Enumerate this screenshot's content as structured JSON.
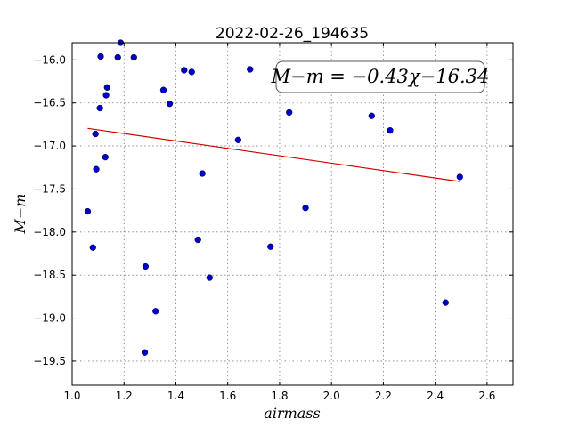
{
  "chart_data": {
    "type": "scatter",
    "title": "2022-02-26_194635",
    "xlabel": "airmass",
    "ylabel": "M−m",
    "xlim": [
      1.0,
      2.7
    ],
    "ylim": [
      -19.78,
      -15.8
    ],
    "x_ticks": [
      1.0,
      1.2,
      1.4,
      1.6,
      1.8,
      2.0,
      2.2,
      2.4,
      2.6
    ],
    "x_tick_labels": [
      "1.0",
      "1.2",
      "1.4",
      "1.6",
      "1.8",
      "2.0",
      "2.2",
      "2.4",
      "2.6"
    ],
    "y_ticks": [
      -16.0,
      -16.5,
      -17.0,
      -17.5,
      -18.0,
      -18.5,
      -19.0,
      -19.5
    ],
    "y_tick_labels": [
      "−16.0",
      "−16.5",
      "−17.0",
      "−17.5",
      "−18.0",
      "−18.5",
      "−19.0",
      "−19.5"
    ],
    "grid": true,
    "annotation": "M−m = −0.43χ−16.34",
    "colors": {
      "points": "#0000cc",
      "fit": "#cc0000"
    },
    "fit": {
      "slope": -0.43,
      "intercept": -16.34,
      "x_range": [
        1.06,
        2.495
      ]
    },
    "points": [
      {
        "x": 1.06,
        "y": -17.76
      },
      {
        "x": 1.08,
        "y": -18.18
      },
      {
        "x": 1.09,
        "y": -16.86
      },
      {
        "x": 1.093,
        "y": -17.27
      },
      {
        "x": 1.107,
        "y": -16.56
      },
      {
        "x": 1.11,
        "y": -15.96
      },
      {
        "x": 1.128,
        "y": -17.13
      },
      {
        "x": 1.131,
        "y": -16.41
      },
      {
        "x": 1.135,
        "y": -16.32
      },
      {
        "x": 1.176,
        "y": -15.97
      },
      {
        "x": 1.187,
        "y": -15.8
      },
      {
        "x": 1.238,
        "y": -15.97
      },
      {
        "x": 1.28,
        "y": -19.4
      },
      {
        "x": 1.283,
        "y": -18.4
      },
      {
        "x": 1.322,
        "y": -18.92
      },
      {
        "x": 1.352,
        "y": -16.35
      },
      {
        "x": 1.376,
        "y": -16.51
      },
      {
        "x": 1.432,
        "y": -16.12
      },
      {
        "x": 1.461,
        "y": -16.14
      },
      {
        "x": 1.485,
        "y": -18.09
      },
      {
        "x": 1.502,
        "y": -17.32
      },
      {
        "x": 1.53,
        "y": -18.53
      },
      {
        "x": 1.64,
        "y": -16.93
      },
      {
        "x": 1.686,
        "y": -16.11
      },
      {
        "x": 1.765,
        "y": -18.17
      },
      {
        "x": 1.837,
        "y": -16.61
      },
      {
        "x": 1.9,
        "y": -17.72
      },
      {
        "x": 2.155,
        "y": -16.65
      },
      {
        "x": 2.226,
        "y": -16.82
      },
      {
        "x": 2.44,
        "y": -18.82
      },
      {
        "x": 2.495,
        "y": -17.36
      }
    ]
  }
}
